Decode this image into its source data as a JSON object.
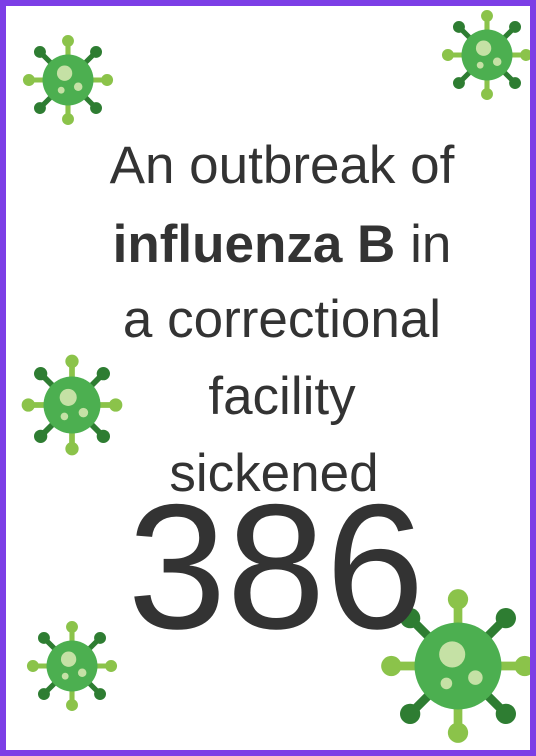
{
  "poster": {
    "line1": "An outbreak of",
    "line2_bold": "influenza B",
    "line2_rest": "in",
    "line3": "a correctional",
    "line4": "facility",
    "line5": "sickened",
    "number": "386"
  }
}
